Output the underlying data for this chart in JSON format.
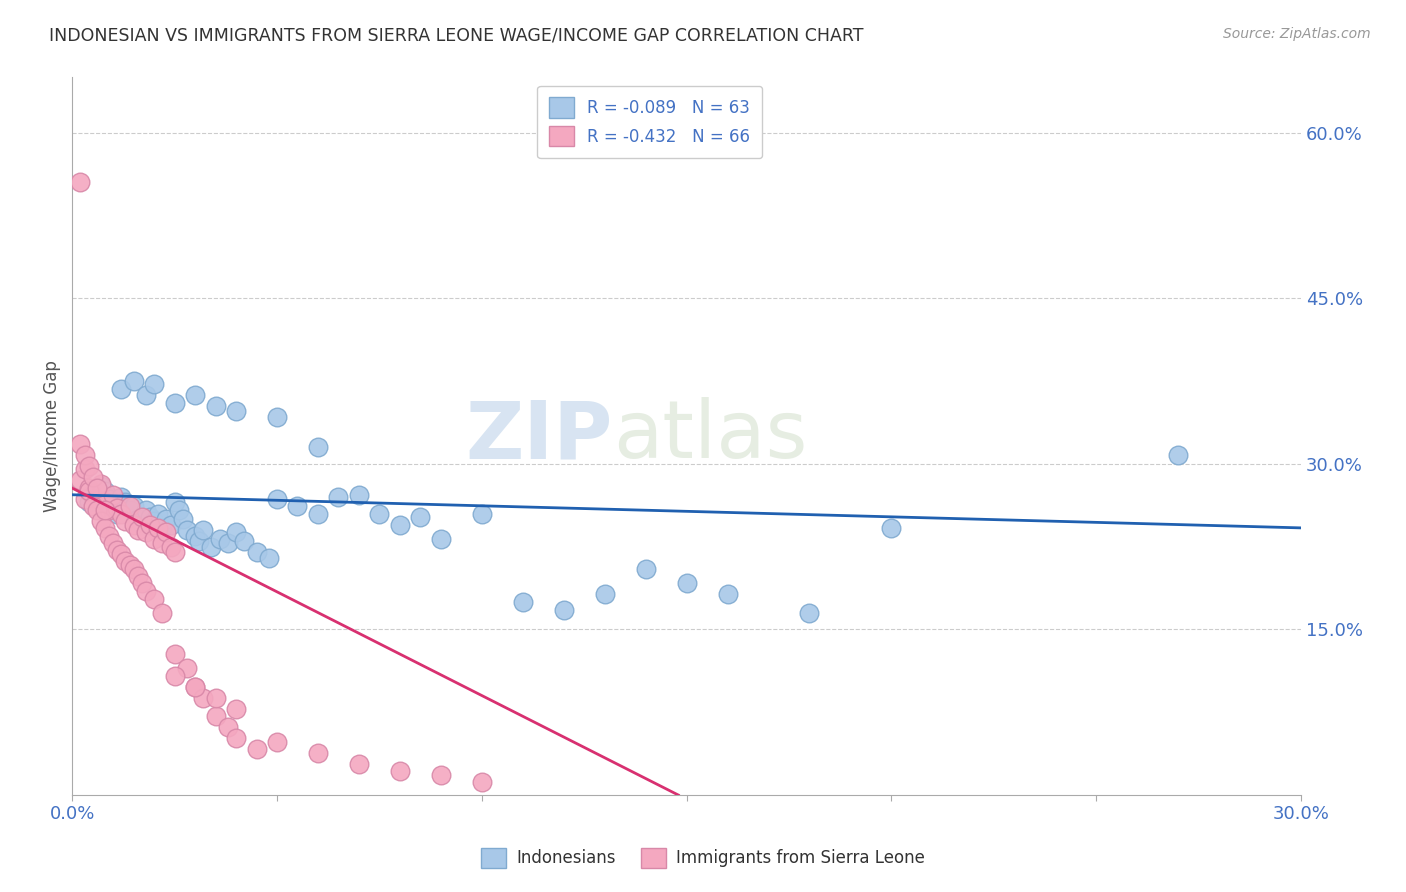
{
  "title": "INDONESIAN VS IMMIGRANTS FROM SIERRA LEONE WAGE/INCOME GAP CORRELATION CHART",
  "source": "Source: ZipAtlas.com",
  "ylabel": "Wage/Income Gap",
  "xlim": [
    0.0,
    0.3
  ],
  "ylim": [
    0.0,
    0.65
  ],
  "xticks": [
    0.0,
    0.05,
    0.1,
    0.15,
    0.2,
    0.25,
    0.3
  ],
  "xticklabels": [
    "0.0%",
    "",
    "",
    "",
    "",
    "",
    "30.0%"
  ],
  "yticks_right": [
    0.15,
    0.3,
    0.45,
    0.6
  ],
  "ytick_labels_right": [
    "15.0%",
    "30.0%",
    "45.0%",
    "60.0%"
  ],
  "legend_r1": "-0.089",
  "legend_n1": "63",
  "legend_r2": "-0.432",
  "legend_n2": "66",
  "color_indonesian": "#a8c8e8",
  "color_sierra_leone": "#f4a8c0",
  "color_line_indonesian": "#2060b0",
  "color_line_sierra_leone": "#d83070",
  "watermark_zip": "ZIP",
  "watermark_atlas": "atlas",
  "indonesian_x": [
    0.004,
    0.005,
    0.007,
    0.008,
    0.009,
    0.01,
    0.011,
    0.012,
    0.013,
    0.014,
    0.015,
    0.016,
    0.017,
    0.018,
    0.019,
    0.02,
    0.021,
    0.022,
    0.023,
    0.024,
    0.025,
    0.026,
    0.027,
    0.028,
    0.03,
    0.031,
    0.032,
    0.034,
    0.036,
    0.038,
    0.04,
    0.042,
    0.045,
    0.048,
    0.05,
    0.055,
    0.06,
    0.065,
    0.07,
    0.075,
    0.08,
    0.085,
    0.09,
    0.1,
    0.11,
    0.12,
    0.13,
    0.14,
    0.15,
    0.16,
    0.18,
    0.2,
    0.27,
    0.012,
    0.015,
    0.018,
    0.02,
    0.025,
    0.03,
    0.035,
    0.04,
    0.05,
    0.06
  ],
  "indonesian_y": [
    0.265,
    0.27,
    0.28,
    0.275,
    0.268,
    0.26,
    0.255,
    0.27,
    0.265,
    0.258,
    0.262,
    0.25,
    0.245,
    0.258,
    0.252,
    0.248,
    0.255,
    0.242,
    0.25,
    0.245,
    0.265,
    0.258,
    0.25,
    0.24,
    0.235,
    0.23,
    0.24,
    0.225,
    0.232,
    0.228,
    0.238,
    0.23,
    0.22,
    0.215,
    0.268,
    0.262,
    0.255,
    0.27,
    0.272,
    0.255,
    0.245,
    0.252,
    0.232,
    0.255,
    0.175,
    0.168,
    0.182,
    0.205,
    0.192,
    0.182,
    0.165,
    0.242,
    0.308,
    0.368,
    0.375,
    0.362,
    0.372,
    0.355,
    0.362,
    0.352,
    0.348,
    0.342,
    0.315
  ],
  "sierra_leone_x": [
    0.002,
    0.003,
    0.004,
    0.005,
    0.006,
    0.007,
    0.008,
    0.009,
    0.01,
    0.011,
    0.012,
    0.013,
    0.014,
    0.015,
    0.016,
    0.017,
    0.018,
    0.019,
    0.02,
    0.021,
    0.022,
    0.023,
    0.024,
    0.025,
    0.003,
    0.004,
    0.005,
    0.006,
    0.007,
    0.008,
    0.009,
    0.01,
    0.011,
    0.012,
    0.013,
    0.014,
    0.015,
    0.016,
    0.017,
    0.018,
    0.02,
    0.022,
    0.025,
    0.028,
    0.03,
    0.032,
    0.035,
    0.038,
    0.04,
    0.045,
    0.05,
    0.06,
    0.07,
    0.08,
    0.09,
    0.1,
    0.025,
    0.03,
    0.035,
    0.04,
    0.002,
    0.003,
    0.004,
    0.005,
    0.006,
    0.008
  ],
  "sierra_leone_y": [
    0.285,
    0.295,
    0.278,
    0.272,
    0.268,
    0.282,
    0.265,
    0.258,
    0.272,
    0.26,
    0.255,
    0.248,
    0.262,
    0.245,
    0.24,
    0.252,
    0.238,
    0.245,
    0.232,
    0.242,
    0.228,
    0.238,
    0.225,
    0.22,
    0.268,
    0.275,
    0.262,
    0.258,
    0.248,
    0.242,
    0.235,
    0.228,
    0.222,
    0.218,
    0.212,
    0.208,
    0.205,
    0.198,
    0.192,
    0.185,
    0.178,
    0.165,
    0.128,
    0.115,
    0.098,
    0.088,
    0.072,
    0.062,
    0.052,
    0.042,
    0.048,
    0.038,
    0.028,
    0.022,
    0.018,
    0.012,
    0.108,
    0.098,
    0.088,
    0.078,
    0.318,
    0.308,
    0.298,
    0.288,
    0.278,
    0.258
  ],
  "sierra_leone_outlier_x": [
    0.002
  ],
  "sierra_leone_outlier_y": [
    0.555
  ],
  "indo_line_x0": 0.0,
  "indo_line_y0": 0.272,
  "indo_line_x1": 0.3,
  "indo_line_y1": 0.242,
  "sl_line_x0": 0.0,
  "sl_line_y0": 0.278,
  "sl_line_x1": 0.148,
  "sl_line_y1": 0.0
}
